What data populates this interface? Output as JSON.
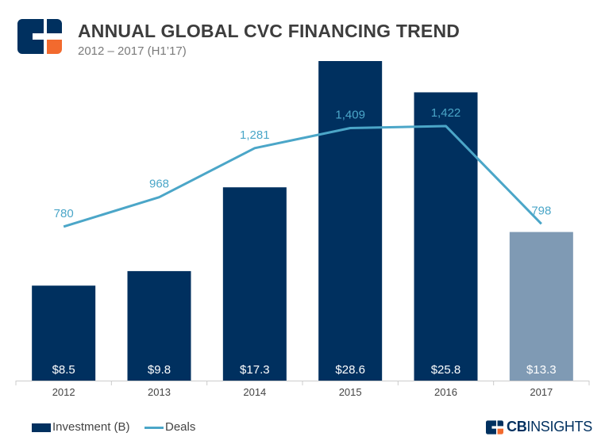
{
  "header": {
    "title": "ANNUAL GLOBAL CVC FINANCING TREND",
    "subtitle": "2012 – 2017 (H1’17)"
  },
  "legend": {
    "investment_label": "Investment (B)",
    "deals_label": "Deals"
  },
  "brand": {
    "prefix": "CB",
    "name": "INSIGHTS"
  },
  "colors": {
    "bar": "#00305f",
    "bar_partial": "#7f9ab4",
    "line": "#4ba6c8",
    "logo_orange": "#f26a2e"
  },
  "chart_data": {
    "type": "bar",
    "title": "ANNUAL GLOBAL CVC FINANCING TREND",
    "subtitle": "2012 – 2017 (H1’17)",
    "categories": [
      "2012",
      "2013",
      "2014",
      "2015",
      "2016",
      "2017"
    ],
    "series": [
      {
        "name": "Investment (B)",
        "type": "bar",
        "values": [
          8.5,
          9.8,
          17.3,
          28.6,
          25.8,
          13.3
        ],
        "labels": [
          "$8.5",
          "$9.8",
          "$17.3",
          "$28.6",
          "$25.8",
          "$13.3"
        ]
      },
      {
        "name": "Deals",
        "type": "line",
        "values": [
          780,
          968,
          1281,
          1409,
          1422,
          798
        ],
        "labels": [
          "780",
          "968",
          "1,281",
          "1,409",
          "1,422",
          "798"
        ]
      }
    ],
    "bar_ylim": [
      0,
      28.6
    ],
    "line_ylim": [
      0,
      1700
    ],
    "legend_position": "bottom-left",
    "grid": false
  }
}
